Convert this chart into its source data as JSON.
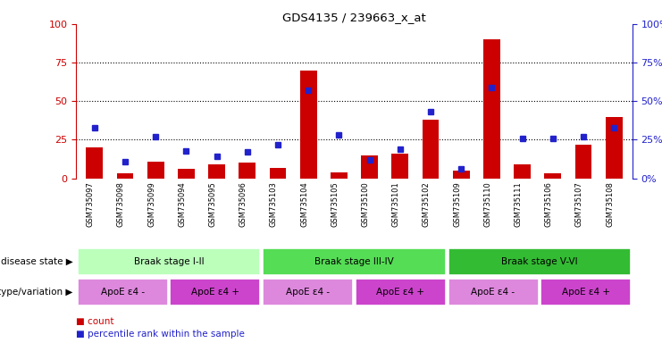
{
  "title": "GDS4135 / 239663_x_at",
  "samples": [
    "GSM735097",
    "GSM735098",
    "GSM735099",
    "GSM735094",
    "GSM735095",
    "GSM735096",
    "GSM735103",
    "GSM735104",
    "GSM735105",
    "GSM735100",
    "GSM735101",
    "GSM735102",
    "GSM735109",
    "GSM735110",
    "GSM735111",
    "GSM735106",
    "GSM735107",
    "GSM735108"
  ],
  "counts": [
    20,
    3,
    11,
    6,
    9,
    10,
    7,
    70,
    4,
    15,
    16,
    38,
    5,
    90,
    9,
    3,
    22,
    40
  ],
  "percentiles": [
    33,
    11,
    27,
    18,
    14,
    17,
    22,
    57,
    28,
    12,
    19,
    43,
    6,
    59,
    26,
    26,
    27,
    33
  ],
  "bar_color": "#cc0000",
  "dot_color": "#2222cc",
  "ylim_left": [
    0,
    100
  ],
  "ylim_right": [
    0,
    100
  ],
  "yticks_left": [
    0,
    25,
    50,
    75,
    100
  ],
  "yticks_right": [
    0,
    25,
    50,
    75,
    100
  ],
  "grid_values": [
    25,
    50,
    75
  ],
  "disease_groups": [
    {
      "label": "Braak stage I-II",
      "start": 0,
      "end": 6,
      "color": "#bbffbb"
    },
    {
      "label": "Braak stage III-IV",
      "start": 6,
      "end": 12,
      "color": "#55dd55"
    },
    {
      "label": "Braak stage V-VI",
      "start": 12,
      "end": 18,
      "color": "#33bb33"
    }
  ],
  "genotype_groups": [
    {
      "label": "ApoE ε4 -",
      "start": 0,
      "end": 3,
      "color": "#dd88dd"
    },
    {
      "label": "ApoE ε4 +",
      "start": 3,
      "end": 6,
      "color": "#cc44cc"
    },
    {
      "label": "ApoE ε4 -",
      "start": 6,
      "end": 9,
      "color": "#dd88dd"
    },
    {
      "label": "ApoE ε4 +",
      "start": 9,
      "end": 12,
      "color": "#cc44cc"
    },
    {
      "label": "ApoE ε4 -",
      "start": 12,
      "end": 15,
      "color": "#dd88dd"
    },
    {
      "label": "ApoE ε4 +",
      "start": 15,
      "end": 18,
      "color": "#cc44cc"
    }
  ],
  "legend_count_color": "#cc0000",
  "legend_pct_color": "#2222cc",
  "left_axis_color": "#cc0000",
  "right_axis_color": "#2222cc",
  "background_color": "#ffffff",
  "xtick_bg_color": "#cccccc",
  "n_samples": 18
}
